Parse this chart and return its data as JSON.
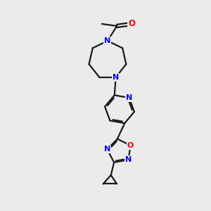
{
  "bg_color": "#ebebeb",
  "bond_color": "#1a1a1a",
  "N_color": "#0000ee",
  "O_color": "#ee0000",
  "line_width": 1.6,
  "figsize": [
    3.0,
    3.0
  ],
  "dpi": 100,
  "xlim": [
    0,
    10
  ],
  "ylim": [
    0,
    10
  ]
}
